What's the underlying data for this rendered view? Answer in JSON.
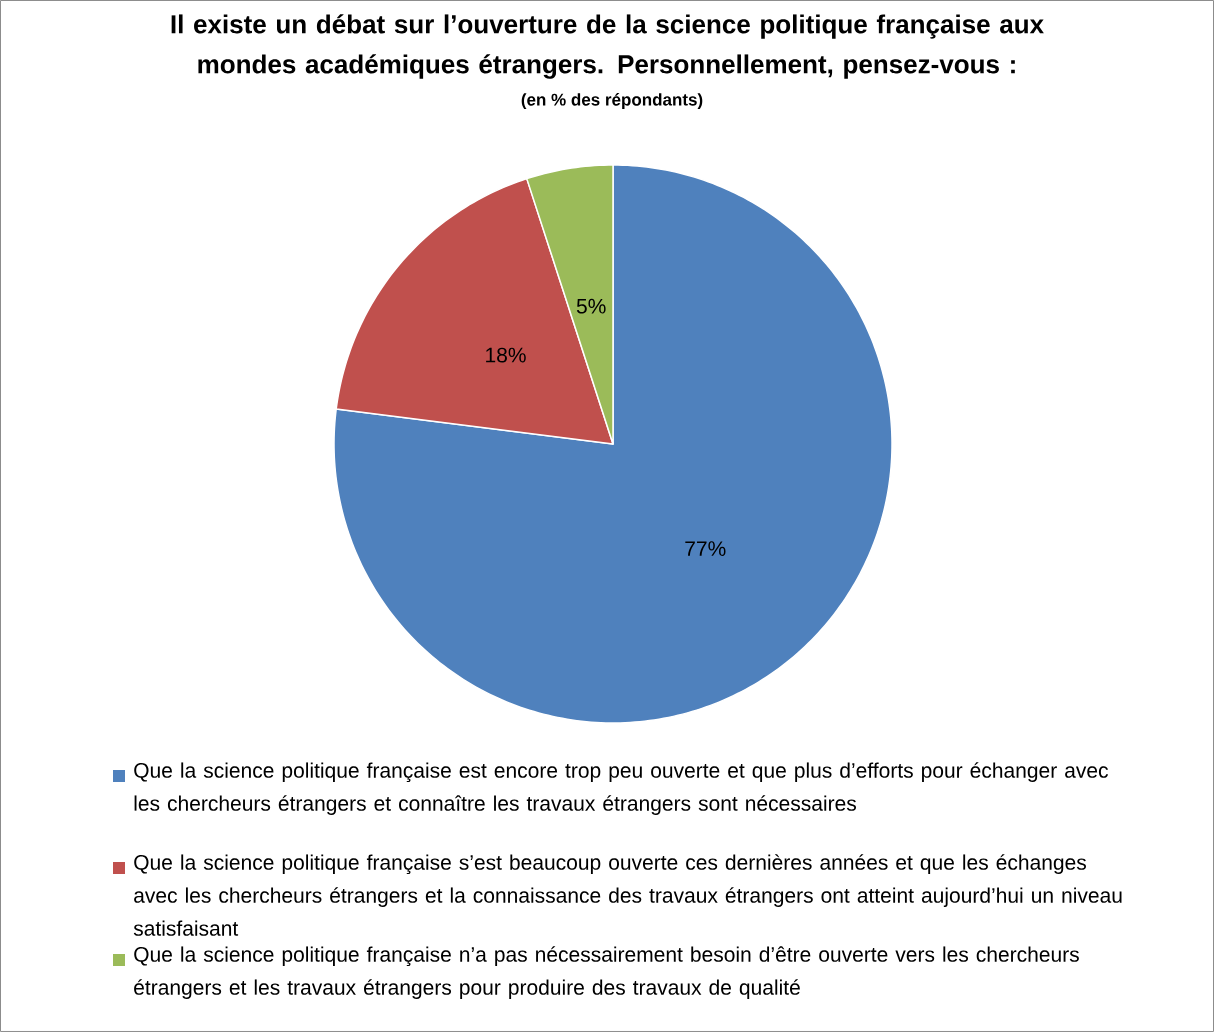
{
  "chart_data": {
    "type": "pie",
    "title": "Il existe un débat sur l’ouverture de la science politique française aux mondes académiques étrangers. Personnellement, pensez-vous :",
    "subtitle": "(en % des répondants)",
    "categories": [
      "Que la science politique française est encore trop peu ouverte et que plus d’efforts pour échanger avec les chercheurs étrangers et connaître les travaux étrangers sont nécessaires",
      "Que la science politique française s’est beaucoup ouverte ces dernières années et que les échanges avec les chercheurs étrangers et la connaissance des travaux étrangers ont atteint aujourd’hui un niveau satisfaisant",
      "Que la science politique française n’a pas nécessairement besoin d’être ouverte vers les chercheurs étrangers et les travaux étrangers pour produire des travaux de qualité"
    ],
    "values": [
      77,
      18,
      5
    ],
    "value_labels": [
      "77%",
      "18%",
      "5%"
    ],
    "colors": [
      "#4f81bd",
      "#c0504d",
      "#9bbb59"
    ],
    "legend": "bottom"
  }
}
